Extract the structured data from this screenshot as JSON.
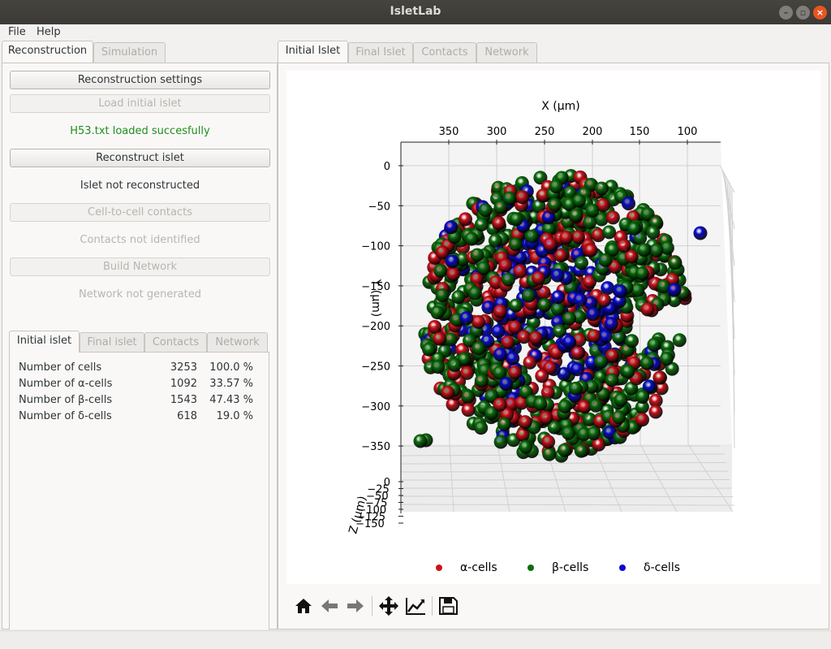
{
  "window": {
    "title": "IsletLab"
  },
  "menu": [
    "File",
    "Help"
  ],
  "left_tabs": [
    {
      "label": "Reconstruction",
      "active": true
    },
    {
      "label": "Simulation",
      "active": false
    }
  ],
  "reconstruction": {
    "settings_button": "Reconstruction settings",
    "load_button": "Load initial islet",
    "load_status": "H53.txt loaded succesfully",
    "reconstruct_button": "Reconstruct islet",
    "reconstruct_status": "Islet not reconstructed",
    "contacts_button": "Cell-to-cell contacts",
    "contacts_status": "Contacts not identified",
    "network_button": "Build Network",
    "network_status": "Network not generated"
  },
  "stats_tabs": [
    {
      "label": "Initial islet",
      "active": true
    },
    {
      "label": "Final islet",
      "active": false
    },
    {
      "label": "Contacts",
      "active": false
    },
    {
      "label": "Network",
      "active": false
    }
  ],
  "stats": [
    {
      "label": "Number of cells",
      "count": "3253",
      "percent": "100.0 %"
    },
    {
      "label": "Number of α-cells",
      "count": "1092",
      "percent": "33.57 %"
    },
    {
      "label": "Number of β-cells",
      "count": "1543",
      "percent": "47.43 %"
    },
    {
      "label": "Number of δ-cells",
      "count": "618",
      "percent": "19.0 %"
    }
  ],
  "right_tabs": [
    {
      "label": "Initial Islet",
      "active": true
    },
    {
      "label": "Final Islet",
      "active": false
    },
    {
      "label": "Contacts",
      "active": false
    },
    {
      "label": "Network",
      "active": false
    }
  ],
  "colors": {
    "alpha": "#d0101a",
    "beta": "#0a6e0a",
    "delta": "#0a0ad0",
    "accent_ok": "#1e8e1e",
    "close": "#e95420"
  },
  "plot": {
    "x_axis_label": "X (μm)",
    "y_axis_label": "Y (μm)",
    "z_axis_label": "Z (μm)",
    "x_ticks": [
      "350",
      "300",
      "250",
      "200",
      "150",
      "100"
    ],
    "y_ticks": [
      "0",
      "−50",
      "−100",
      "−150",
      "−200",
      "−250",
      "−300",
      "−350"
    ],
    "z_ticks": [
      "0",
      "−25",
      "−50",
      "−75",
      "−100",
      "−125",
      "−150"
    ],
    "legend": [
      {
        "label": "α-cells",
        "color": "#d0101a"
      },
      {
        "label": "β-cells",
        "color": "#0a6e0a"
      },
      {
        "label": "δ-cells",
        "color": "#0a0ad0"
      }
    ]
  },
  "toolbar_icons": [
    "home-icon",
    "back-arrow-icon",
    "forward-arrow-icon",
    "pan-icon",
    "configure-subplots-icon",
    "save-icon"
  ]
}
